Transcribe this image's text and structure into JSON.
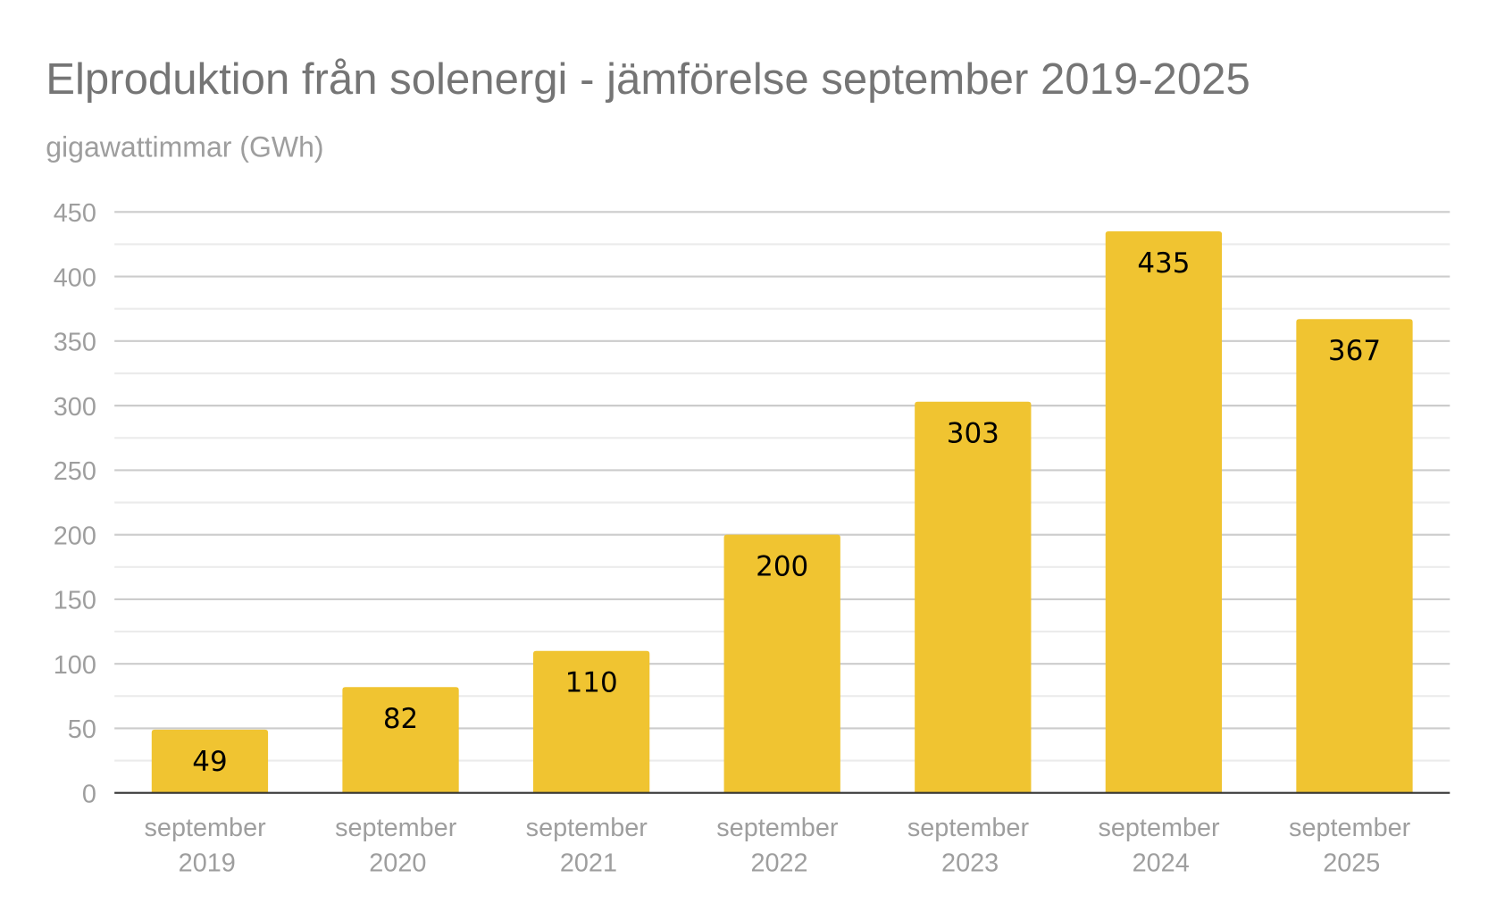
{
  "chart_data": {
    "type": "bar",
    "title": "Elproduktion från solenergi - jämförelse september 2019-2025",
    "subtitle": "gigawattimmar (GWh)",
    "xlabel": "",
    "ylabel": "gigawattimmar (GWh)",
    "categories": [
      [
        "september",
        "2019"
      ],
      [
        "september",
        "2020"
      ],
      [
        "september",
        "2021"
      ],
      [
        "september",
        "2022"
      ],
      [
        "september",
        "2023"
      ],
      [
        "september",
        "2024"
      ],
      [
        "september",
        "2025"
      ]
    ],
    "values": [
      49,
      82,
      110,
      200,
      303,
      435,
      367
    ],
    "data_labels": [
      "49",
      "82",
      "110",
      "200",
      "303",
      "435",
      "367"
    ],
    "ylim": [
      0,
      450
    ],
    "yticks": [
      0,
      50,
      100,
      150,
      200,
      250,
      300,
      350,
      400,
      450
    ],
    "minor_grid_step": 25,
    "grid": true,
    "legend": "none",
    "colors": {
      "bar": "#f0c431",
      "major_grid": "#cccccc",
      "minor_grid": "#ebebeb",
      "axis": "#333333"
    }
  }
}
